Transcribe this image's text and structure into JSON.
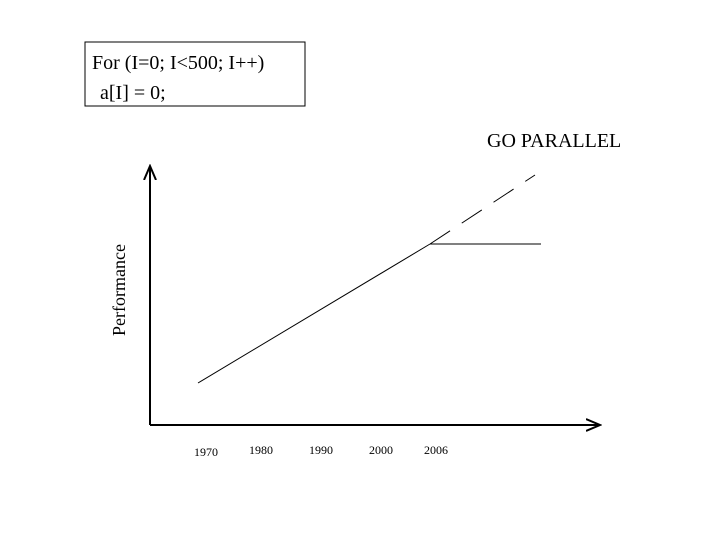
{
  "code_box": {
    "lines": [
      "For (I=0; I<500; I++)",
      "a[I] = 0;"
    ]
  },
  "annotation": "GO PARALLEL",
  "axes": {
    "y_label": "Performance",
    "x_labels": [
      "1970",
      "1980",
      "1990",
      "2000",
      "2006"
    ]
  }
}
